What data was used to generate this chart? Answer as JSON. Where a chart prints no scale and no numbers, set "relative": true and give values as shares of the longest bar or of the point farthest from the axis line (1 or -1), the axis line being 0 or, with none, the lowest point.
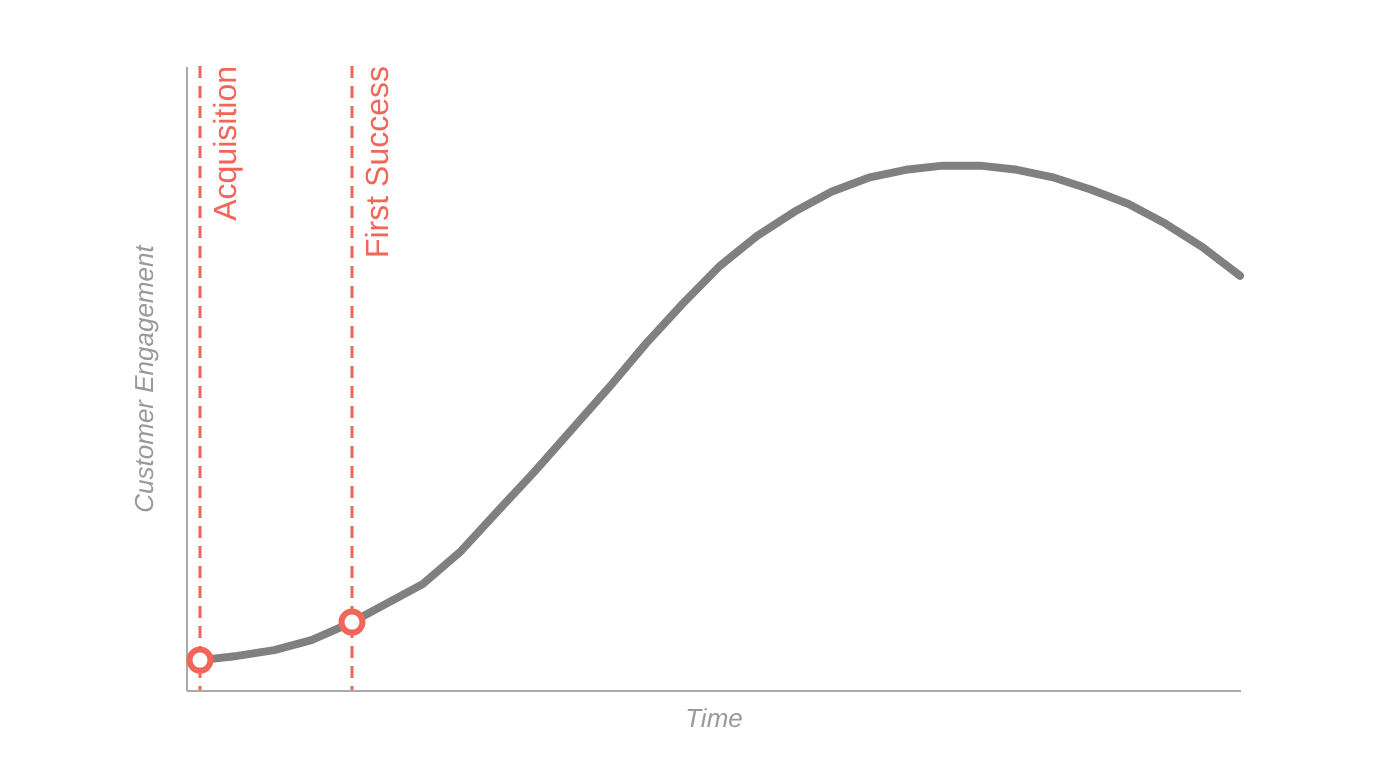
{
  "chart_data": {
    "type": "line",
    "relative": true,
    "xlabel": "Time",
    "ylabel": "Customer Engagement",
    "categories": [
      null,
      null,
      null,
      null,
      null,
      null,
      null,
      null,
      null,
      null,
      null,
      null,
      null,
      null,
      null,
      null,
      null,
      null,
      null,
      null,
      null,
      null,
      null,
      null,
      null,
      null,
      null,
      null,
      null
    ],
    "series": [
      {
        "type": "line",
        "color": "#808080",
        "marker": "none",
        "line_style": "solid",
        "values": [
          0.057,
          0.065,
          0.076,
          0.095,
          0.126,
          0.164,
          0.202,
          0.263,
          0.34,
          0.416,
          0.496,
          0.576,
          0.66,
          0.737,
          0.809,
          0.866,
          0.912,
          0.95,
          0.977,
          0.992,
          1,
          1,
          0.992,
          0.977,
          0.954,
          0.927,
          0.889,
          0.844,
          0.79
        ]
      }
    ],
    "annotations": [
      "Acquisition",
      "First Success"
    ],
    "grid": false,
    "tick_labels": false
  }
}
